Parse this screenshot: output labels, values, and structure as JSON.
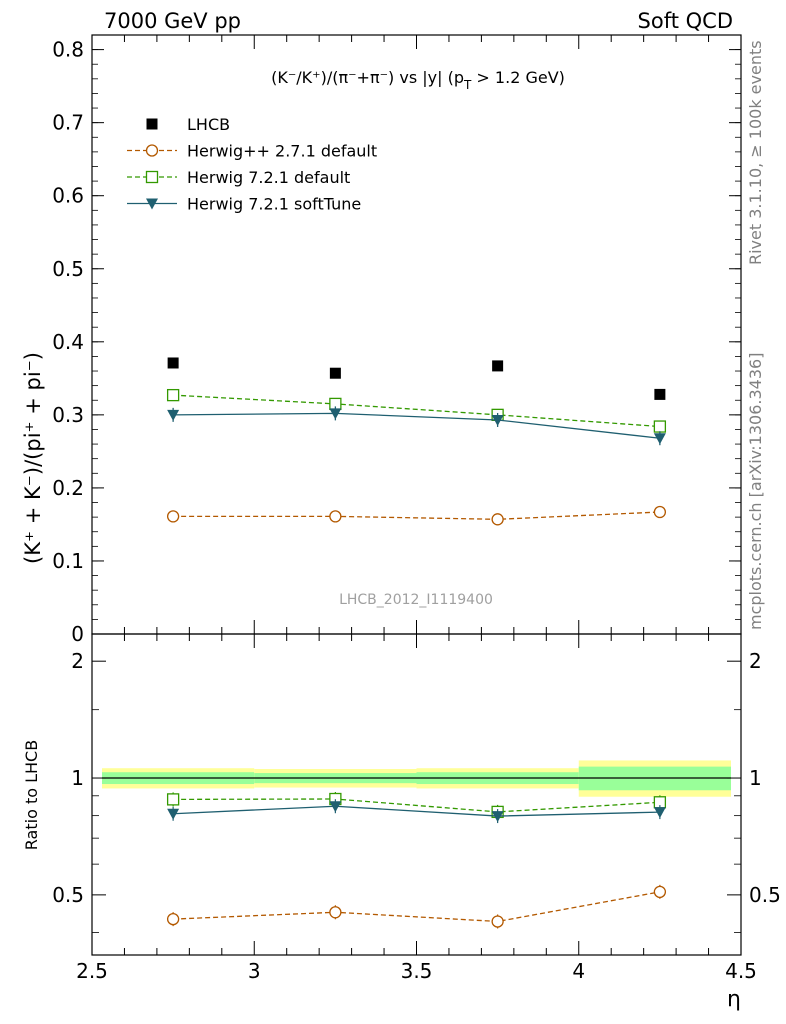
{
  "header": {
    "left": "7000 GeV pp",
    "right": "Soft QCD"
  },
  "side_labels": {
    "rivet": "Rivet 3.1.10, ≥ 100k events",
    "mcplots": "mcplots.cern.ch [arXiv:1306.3436]"
  },
  "watermark": "LHCB_2012_I1119400",
  "chart_data": [
    {
      "type": "scatter",
      "title": "(K⁻/K⁺)/(π⁻+π⁻) vs |y| (p_T > 1.2 GeV)",
      "title_parts": {
        "main": "(K⁻/K⁺)/(π⁻+π⁻) vs |y| (p",
        "sub": "T",
        "tail": " > 1.2 GeV)"
      },
      "xlabel": "η",
      "ylabel": "(K⁺ + K⁻)/(pi⁺ + pi⁻)",
      "xlim": [
        2.5,
        4.5
      ],
      "ylim": [
        0,
        0.82
      ],
      "yticks": [
        0,
        0.1,
        0.2,
        0.3,
        0.4,
        0.5,
        0.6,
        0.7,
        0.8
      ],
      "ytick_labels": [
        "0",
        "0.1",
        "0.2",
        "0.3",
        "0.4",
        "0.5",
        "0.6",
        "0.7",
        "0.8"
      ],
      "legend_position": "top-left",
      "grid": false,
      "x": [
        2.75,
        3.25,
        3.75,
        4.25
      ],
      "series": [
        {
          "name": "LHCB",
          "color": "#000000",
          "marker": "filled-square",
          "line": "none",
          "values": [
            0.371,
            0.357,
            0.367,
            0.328
          ]
        },
        {
          "name": "Herwig++ 2.7.1 default",
          "color": "#b35900",
          "marker": "open-circle",
          "line": "dashed",
          "values": [
            0.161,
            0.161,
            0.157,
            0.167
          ]
        },
        {
          "name": "Herwig 7.2.1 default",
          "color": "#339900",
          "marker": "open-square",
          "line": "dashed",
          "values": [
            0.327,
            0.315,
            0.3,
            0.284
          ]
        },
        {
          "name": "Herwig 7.2.1 softTune",
          "color": "#1f5f70",
          "marker": "filled-triangle-down",
          "line": "solid",
          "values": [
            0.3,
            0.302,
            0.293,
            0.268
          ]
        }
      ]
    },
    {
      "type": "line",
      "ylabel": "Ratio to LHCB",
      "xlabel": "η",
      "xlim": [
        2.5,
        4.5
      ],
      "ylim": [
        0.35,
        2.35
      ],
      "log_y": true,
      "yticks": [
        0.5,
        1,
        2
      ],
      "ytick_labels": [
        "0.5",
        "1",
        "2"
      ],
      "xticks": [
        2.5,
        3,
        3.5,
        4,
        4.5
      ],
      "xtick_labels": [
        "2.5",
        "3",
        "3.5",
        "4",
        "4.5"
      ],
      "x": [
        2.75,
        3.25,
        3.75,
        4.25
      ],
      "bins": [
        [
          2.5,
          3.0
        ],
        [
          3.0,
          3.5
        ],
        [
          3.5,
          4.0
        ],
        [
          4.0,
          4.5
        ]
      ],
      "band_inner": [
        [
          0.965,
          1.035
        ],
        [
          0.97,
          1.03
        ],
        [
          0.965,
          1.035
        ],
        [
          0.93,
          1.07
        ]
      ],
      "band_outer": [
        [
          0.94,
          1.06
        ],
        [
          0.945,
          1.055
        ],
        [
          0.94,
          1.06
        ],
        [
          0.895,
          1.11
        ]
      ],
      "band_inner_color": "#99ff99",
      "band_outer_color": "#ffff99",
      "series": [
        {
          "name": "Herwig++ 2.7.1 default",
          "color": "#b35900",
          "marker": "open-circle",
          "line": "dashed",
          "values": [
            0.433,
            0.451,
            0.427,
            0.509
          ]
        },
        {
          "name": "Herwig 7.2.1 default",
          "color": "#339900",
          "marker": "open-square",
          "line": "dashed",
          "values": [
            0.881,
            0.883,
            0.818,
            0.866
          ]
        },
        {
          "name": "Herwig 7.2.1 softTune",
          "color": "#1f5f70",
          "marker": "filled-triangle-down",
          "line": "solid",
          "values": [
            0.809,
            0.846,
            0.798,
            0.817
          ]
        }
      ]
    }
  ]
}
